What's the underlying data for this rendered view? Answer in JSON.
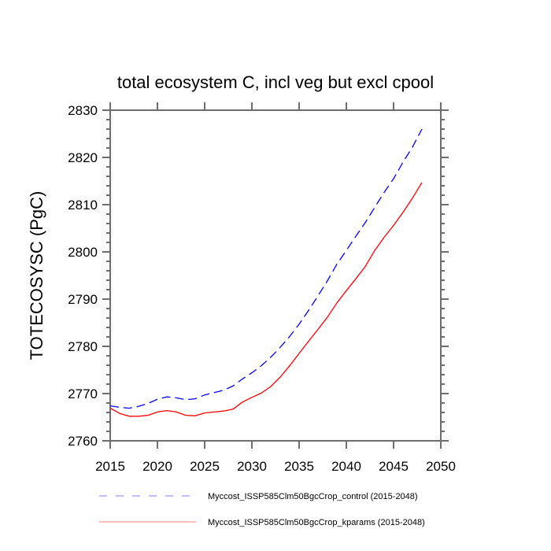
{
  "chart_data": {
    "type": "line",
    "title": "total ecosystem C, incl veg but excl cpool",
    "xlabel": "",
    "ylabel": "TOTECOSYSC  (PgC)",
    "xlim": [
      2015,
      2050
    ],
    "ylim": [
      2760,
      2830
    ],
    "x_ticks": [
      2015,
      2020,
      2025,
      2030,
      2035,
      2040,
      2045,
      2050
    ],
    "x_tick_labels": [
      "2015",
      "2020",
      "2025",
      "2030",
      "2035",
      "2040",
      "2045",
      "2050"
    ],
    "y_ticks": [
      2760,
      2770,
      2780,
      2790,
      2800,
      2810,
      2820,
      2830
    ],
    "y_tick_labels": [
      "2760",
      "2770",
      "2780",
      "2790",
      "2800",
      "2810",
      "2820",
      "2830"
    ],
    "y_minor_step": 2,
    "grid": false,
    "legend_position": "bottom",
    "x": [
      2015,
      2016,
      2017,
      2018,
      2019,
      2020,
      2021,
      2022,
      2023,
      2024,
      2025,
      2026,
      2027,
      2028,
      2029,
      2030,
      2031,
      2032,
      2033,
      2034,
      2035,
      2036,
      2037,
      2038,
      2039,
      2040,
      2041,
      2042,
      2043,
      2044,
      2045,
      2046,
      2047,
      2048
    ],
    "series": [
      {
        "name": "Myccost_ISSP585Clm50BgcCrop_control (2015-2048)",
        "color": "#0000ff",
        "style": "dashed",
        "values": [
          2767.4,
          2767.1,
          2766.9,
          2767.3,
          2767.9,
          2768.8,
          2769.3,
          2769.1,
          2768.7,
          2768.9,
          2769.7,
          2770.2,
          2770.7,
          2771.6,
          2773.1,
          2774.4,
          2775.9,
          2777.7,
          2779.8,
          2782.1,
          2784.7,
          2787.6,
          2790.7,
          2793.9,
          2797.4,
          2800.3,
          2803.3,
          2806.2,
          2809.4,
          2812.6,
          2815.5,
          2819.0,
          2822.2,
          2826.0
        ]
      },
      {
        "name": "Myccost_ISSP585Clm50BgcCrop_kparams (2015-2048)",
        "color": "#ff0000",
        "style": "solid",
        "values": [
          2766.9,
          2765.8,
          2765.2,
          2765.2,
          2765.4,
          2766.1,
          2766.4,
          2766.1,
          2765.4,
          2765.3,
          2765.9,
          2766.1,
          2766.3,
          2766.7,
          2768.2,
          2769.2,
          2770.1,
          2771.5,
          2773.5,
          2775.9,
          2778.5,
          2781.1,
          2783.6,
          2786.2,
          2789.2,
          2791.8,
          2794.3,
          2796.9,
          2800.3,
          2803.1,
          2805.6,
          2808.4,
          2811.4,
          2814.7
        ]
      }
    ]
  }
}
